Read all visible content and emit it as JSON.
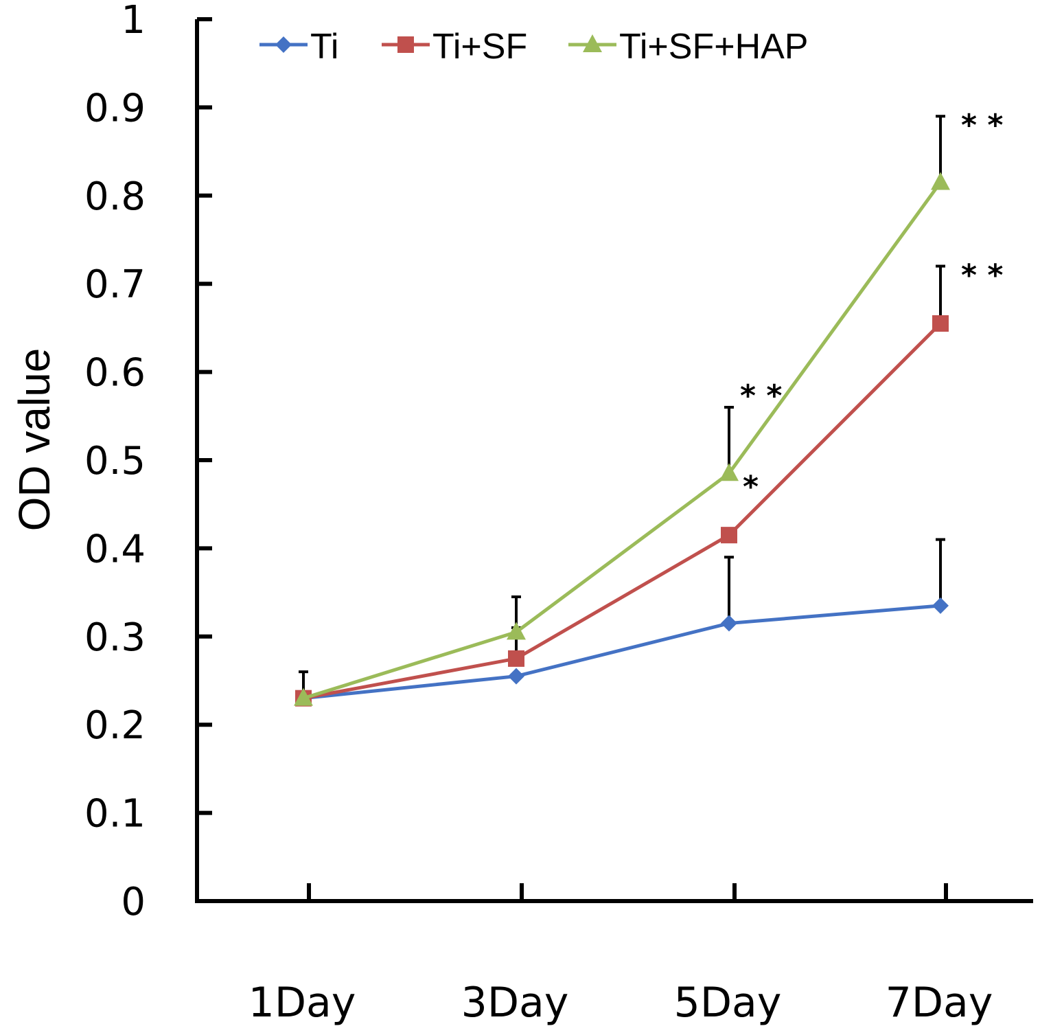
{
  "chart_data": {
    "type": "line",
    "title": "",
    "xlabel": "",
    "ylabel": "OD value",
    "ylim": [
      0,
      1
    ],
    "yticks": [
      "0",
      "0.1",
      "0.2",
      "0.3",
      "0.4",
      "0.5",
      "0.6",
      "0.7",
      "0.8",
      "0.9",
      "1"
    ],
    "categories": [
      "1Day",
      "3Day",
      "5Day",
      "7Day"
    ],
    "legend_position": "top",
    "series": [
      {
        "name": "Ti",
        "color": "#4472C4",
        "marker": "diamond",
        "values": [
          0.23,
          0.255,
          0.315,
          0.335
        ],
        "error_upper": [
          null,
          null,
          0.39,
          0.41
        ],
        "significance": [
          "",
          "",
          "",
          ""
        ]
      },
      {
        "name": "Ti+SF",
        "color": "#C0504D",
        "marker": "square",
        "values": [
          0.23,
          0.275,
          0.415,
          0.655
        ],
        "error_upper": [
          null,
          0.31,
          null,
          0.72
        ],
        "significance": [
          "",
          "",
          "*",
          "**"
        ]
      },
      {
        "name": "Ti+SF+HAP",
        "color": "#9BBB59",
        "marker": "triangle",
        "values": [
          0.23,
          0.305,
          0.485,
          0.815
        ],
        "error_upper": [
          0.26,
          0.345,
          0.56,
          0.89
        ],
        "significance": [
          "",
          "",
          "**",
          "**"
        ]
      }
    ]
  }
}
